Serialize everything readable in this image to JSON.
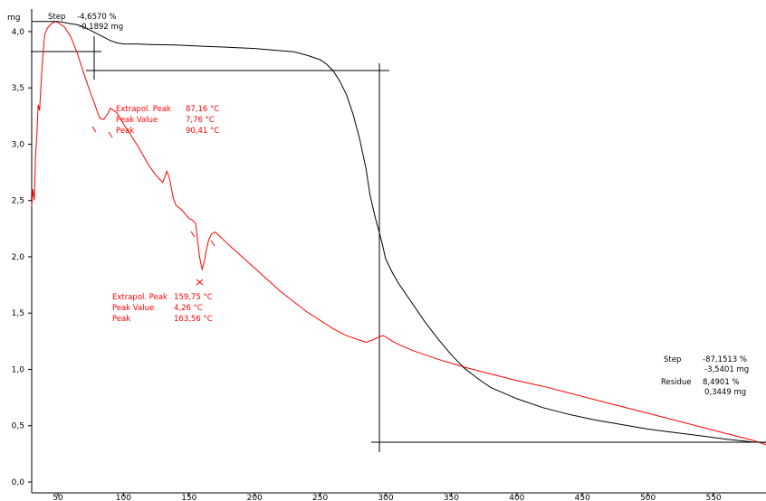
{
  "chart_data": {
    "type": "line",
    "y_unit": "mg",
    "xlim": [
      30,
      590
    ],
    "ylim": [
      0,
      4.2
    ],
    "x_ticks": [
      "50",
      "100",
      "150",
      "200",
      "250",
      "300",
      "350",
      "400",
      "450",
      "500",
      "550"
    ],
    "y_ticks": [
      "0,0",
      "0,5",
      "1,0",
      "1,5",
      "2,0",
      "2,5",
      "3,0",
      "3,5",
      "4,0"
    ],
    "series": [
      {
        "color": "#000000",
        "x": [
          30,
          40,
          45,
          50,
          55,
          60,
          65,
          70,
          75,
          80,
          85,
          90,
          95,
          100,
          110,
          120,
          140,
          160,
          180,
          200,
          220,
          230,
          240,
          250,
          255,
          260,
          265,
          270,
          275,
          280,
          285,
          288,
          292,
          295,
          297,
          300,
          305,
          310,
          320,
          330,
          340,
          350,
          360,
          370,
          380,
          400,
          420,
          440,
          460,
          480,
          500,
          520,
          540,
          560,
          580,
          590
        ],
        "y": [
          4.09,
          4.09,
          4.09,
          4.09,
          4.08,
          4.07,
          4.06,
          4.04,
          4.01,
          3.98,
          3.95,
          3.92,
          3.9,
          3.89,
          3.89,
          3.885,
          3.88,
          3.87,
          3.86,
          3.85,
          3.83,
          3.82,
          3.79,
          3.75,
          3.71,
          3.65,
          3.56,
          3.44,
          3.27,
          3.05,
          2.78,
          2.55,
          2.35,
          2.22,
          2.13,
          1.98,
          1.86,
          1.76,
          1.59,
          1.42,
          1.27,
          1.13,
          1.01,
          0.92,
          0.84,
          0.74,
          0.66,
          0.6,
          0.55,
          0.51,
          0.47,
          0.44,
          0.41,
          0.38,
          0.355,
          0.35
        ]
      },
      {
        "color": "#ff0000",
        "x": [
          30,
          31,
          32,
          33,
          34,
          35,
          36,
          37,
          38,
          39,
          40,
          42,
          45,
          48,
          50,
          55,
          60,
          65,
          70,
          75,
          78,
          80,
          82,
          85,
          88,
          90,
          95,
          100,
          110,
          120,
          125,
          130,
          133,
          135,
          138,
          140,
          145,
          150,
          152,
          155,
          156,
          157,
          158,
          159,
          160,
          161,
          162,
          163,
          165,
          167,
          170,
          180,
          200,
          220,
          240,
          260,
          270,
          280,
          285,
          290,
          295,
          298,
          300,
          305,
          310,
          320,
          340,
          360,
          380,
          400,
          420,
          440,
          460,
          480,
          500,
          520,
          540,
          560,
          580,
          590
        ],
        "y": [
          2.45,
          2.6,
          2.5,
          2.9,
          3.1,
          3.35,
          3.3,
          3.5,
          3.7,
          3.85,
          3.98,
          4.03,
          4.07,
          4.09,
          4.08,
          4.04,
          3.95,
          3.8,
          3.62,
          3.45,
          3.36,
          3.29,
          3.23,
          3.22,
          3.27,
          3.32,
          3.28,
          3.18,
          3.0,
          2.8,
          2.72,
          2.66,
          2.76,
          2.7,
          2.52,
          2.46,
          2.41,
          2.34,
          2.33,
          2.3,
          2.2,
          2.1,
          2.0,
          1.94,
          1.89,
          1.93,
          1.98,
          2.05,
          2.15,
          2.2,
          2.22,
          2.11,
          1.9,
          1.69,
          1.51,
          1.36,
          1.3,
          1.26,
          1.24,
          1.26,
          1.29,
          1.3,
          1.29,
          1.25,
          1.22,
          1.17,
          1.09,
          1.02,
          0.96,
          0.9,
          0.85,
          0.79,
          0.73,
          0.67,
          0.61,
          0.55,
          0.49,
          0.43,
          0.37,
          0.33
        ]
      }
    ],
    "annotations": [
      {
        "label": "Step",
        "values": [
          "-4,6570 %",
          "-0,1892 mg"
        ]
      },
      {
        "lines": [
          "Extrapol. Peak",
          "Peak Value",
          "Peak"
        ],
        "values": [
          "87,16 °C",
          "7,76 °C",
          "90,41 °C"
        ],
        "color": "#ff0000"
      },
      {
        "lines": [
          "Extrapol. Peak",
          "Peak Value",
          "Peak"
        ],
        "values": [
          "159,75 °C",
          "4,26 °C",
          "163,56 °C"
        ],
        "color": "#ff0000"
      },
      {
        "label": "Step",
        "values": [
          "-87,1513 %",
          "-3,5401 mg"
        ],
        "label2": "Residue",
        "values2": [
          "8,4901 %",
          "0,3449 mg"
        ]
      }
    ]
  }
}
